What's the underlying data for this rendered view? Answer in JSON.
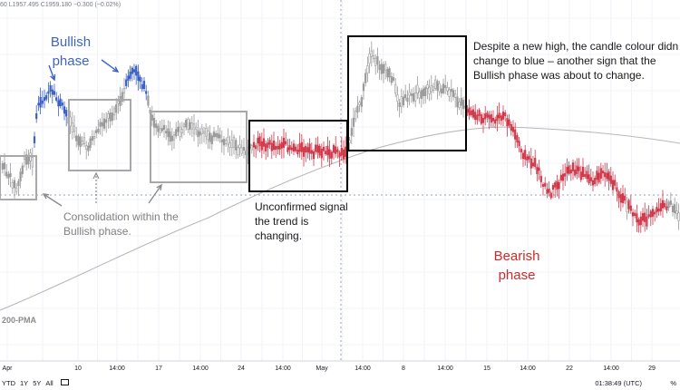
{
  "ohlc_readout": "60 L1957.495 C1959.180 −0.300 (−0.02%)",
  "chart_data": {
    "type": "candlestick",
    "x_tick_labels": [
      "Apr",
      "10",
      "14:00",
      "17",
      "14:00",
      "24",
      "14:00",
      "May",
      "14:00",
      "8",
      "14:00",
      "15",
      "14:00",
      "22",
      "14:00",
      "29"
    ],
    "moving_average_label": "200-PMA",
    "colors": {
      "bullish": "#3b5fc4",
      "bearish": "#d0394a",
      "neutral": "#9a9a9a",
      "ma": "#b8b8b8",
      "box_grey": "#a8a8a8",
      "box_black": "#000000"
    },
    "annotations": {
      "bullish_phase": [
        "Bullish",
        "phase"
      ],
      "bearish_phase": [
        "Bearish",
        "phase"
      ],
      "consolidation": [
        "Consolidation within the",
        "Bullish phase."
      ],
      "unconfirmed": [
        "Unconfirmed signal",
        "the trend is",
        "changing."
      ],
      "despite": [
        "Despite a new high, the candle colour didn",
        "change to blue – another sign that the",
        "Bullish phase was about to change."
      ]
    }
  },
  "footer": {
    "ranges": [
      "YTD",
      "1Y",
      "5Y",
      "All"
    ],
    "clock": "01:38:49 (UTC)",
    "tz": "%"
  }
}
